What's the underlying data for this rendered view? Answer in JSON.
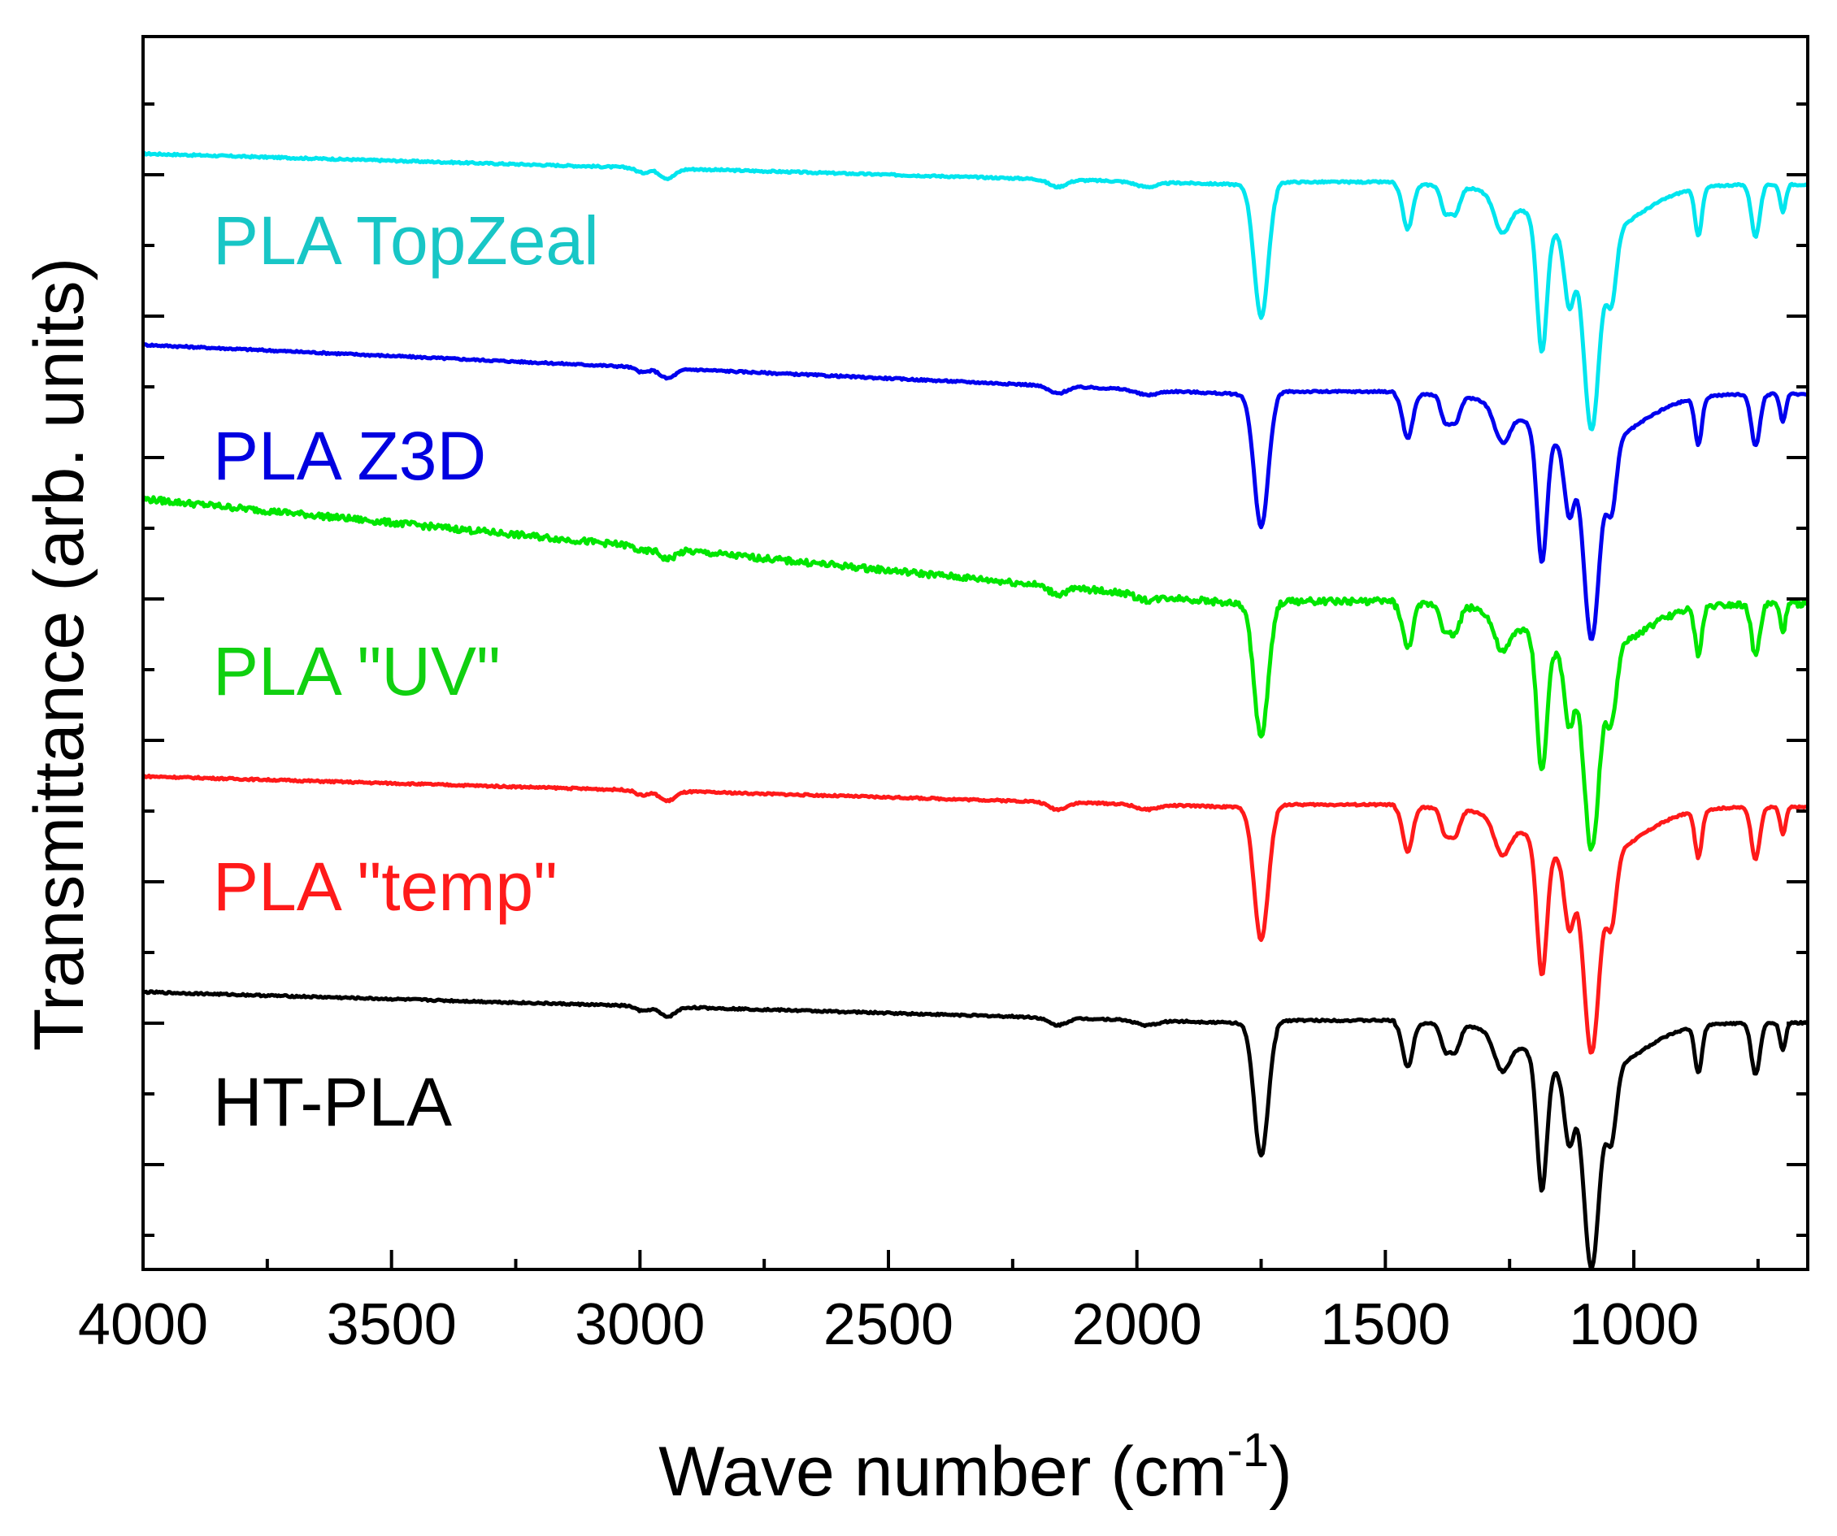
{
  "chart_data": {
    "type": "line",
    "title": "",
    "xlabel": "Wave number (cm",
    "xlabel_sup": "-1",
    "xlabel_end": ")",
    "ylabel": "Transmittance (arb. units)",
    "xlim": [
      4000,
      650
    ],
    "ylim": [
      0,
      10
    ],
    "x_reversed": true,
    "x_ticks": [
      4000,
      3500,
      3000,
      2500,
      2000,
      1500,
      1000
    ],
    "x_tick_labels": [
      "4000",
      "3500",
      "3000",
      "2500",
      "2000",
      "1500",
      "1000"
    ],
    "y_tick_labels_shown": false,
    "grid": false,
    "legend": "inline-left",
    "series": [
      {
        "name": "PLA TopZeal",
        "color": "#00e5ee",
        "label_color": "#18c6c6",
        "offset": 8.8
      },
      {
        "name": "PLA Z3D",
        "color": "#0000ee",
        "label_color": "#0000e0",
        "offset": 7.1
      },
      {
        "name": "PLA \"UV\"",
        "color": "#00e600",
        "label_color": "#10d010",
        "offset": 5.4
      },
      {
        "name": "PLA \"temp\"",
        "color": "#ff1a1a",
        "label_color": "#ff1a1a",
        "offset": 3.75
      },
      {
        "name": "HT-PLA",
        "color": "#000000",
        "label_color": "#000000",
        "offset": 2.0
      }
    ],
    "peaks_cm-1": [
      2995,
      2945,
      1750,
      1455,
      1380,
      1360,
      1265,
      1185,
      1130,
      1085,
      1045,
      870,
      755,
      700
    ],
    "peak_depth": [
      0.04,
      0.08,
      1.08,
      0.36,
      0.2,
      0.22,
      0.28,
      1.05,
      0.55,
      1.55,
      0.55,
      0.38,
      0.42,
      0.22
    ]
  }
}
